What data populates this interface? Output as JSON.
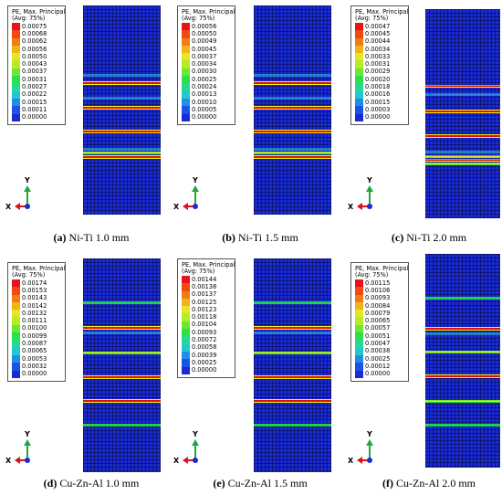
{
  "figure": {
    "panels": [
      {
        "id": "a",
        "letter": "(a)",
        "label": "Ni-Ti 1.0 mm",
        "legend_title_1": "PE, Max. Principal",
        "legend_title_2": "(Avg: 75%)",
        "legend_values": [
          "0.00075",
          "0.00068",
          "0.00062",
          "0.00056",
          "0.00050",
          "0.00043",
          "0.00037",
          "0.00031",
          "0.00027",
          "0.00022",
          "0.00015",
          "0.00011",
          "0.00000"
        ]
      },
      {
        "id": "b",
        "letter": "(b)",
        "label": "Ni-Ti 1.5 mm",
        "legend_title_1": "PE, Max. Principal",
        "legend_title_2": "(Avg: 75%)",
        "legend_values": [
          "0.00056",
          "0.00050",
          "0.00049",
          "0.00045",
          "0.00037",
          "0.00034",
          "0.00030",
          "0.00025",
          "0.00024",
          "0.00013",
          "0.00010",
          "0.00005",
          "0.00000"
        ]
      },
      {
        "id": "c",
        "letter": "(c)",
        "label": "Ni-Ti 2.0 mm",
        "legend_title_1": "PE, Max. Principal",
        "legend_title_2": "(Avg: 75%)",
        "legend_values": [
          "0.00047",
          "0.00045",
          "0.00044",
          "0.00034",
          "0.00033",
          "0.00031",
          "0.00029",
          "0.00020",
          "0.00018",
          "0.00016",
          "0.00015",
          "0.00003",
          "0.00000"
        ]
      },
      {
        "id": "d",
        "letter": "(d)",
        "label": "Cu-Zn-Al 1.0 mm",
        "legend_title_1": "PE, Max. Principal",
        "legend_title_2": "(Avg: 75%)",
        "legend_values": [
          "0.00174",
          "0.00153",
          "0.00143",
          "0.00142",
          "0.00132",
          "0.00111",
          "0.00100",
          "0.00099",
          "0.00087",
          "0.00065",
          "0.00053",
          "0.00032",
          "0.00000"
        ]
      },
      {
        "id": "e",
        "letter": "(e)",
        "label": "Cu-Zn-Al 1.5 mm",
        "legend_title_1": "PE, Max. Principal",
        "legend_title_2": "(Avg: 75%)",
        "legend_values": [
          "0.00144",
          "0.00138",
          "0.00137",
          "0.00125",
          "0.00123",
          "0.00118",
          "0.00104",
          "0.00093",
          "0.00072",
          "0.00058",
          "0.00039",
          "0.00025",
          "0.00000"
        ]
      },
      {
        "id": "f",
        "letter": "(f)",
        "label": "Cu-Zn-Al 2.0 mm",
        "legend_title_1": "PE, Max. Principal",
        "legend_title_2": "(Avg: 75%)",
        "legend_values": [
          "0.00115",
          "0.00106",
          "0.00093",
          "0.00084",
          "0.00079",
          "0.00065",
          "0.00057",
          "0.00051",
          "0.00047",
          "0.00038",
          "0.00025",
          "0.00012",
          "0.00000"
        ]
      }
    ],
    "legend_colors": [
      "#e8131a",
      "#f04a12",
      "#f07c14",
      "#f0b419",
      "#e6e621",
      "#b4ec26",
      "#6ee632",
      "#2ede4a",
      "#25d893",
      "#22c8cf",
      "#1f8ee6",
      "#1c52e6",
      "#1a2bd4"
    ],
    "axis_labels": {
      "y": "Y",
      "x": "X"
    },
    "axis_colors": {
      "y": "#1fa83a",
      "x": "#d4141a",
      "z": "#1a2bd4"
    }
  }
}
